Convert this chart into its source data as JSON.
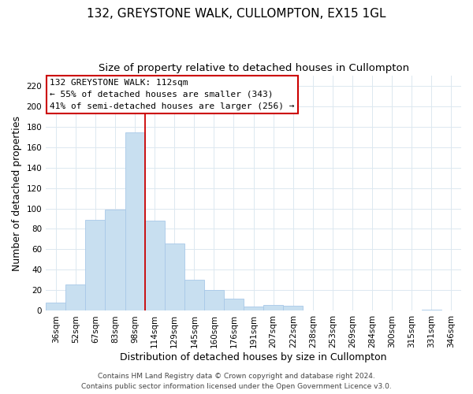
{
  "title": "132, GREYSTONE WALK, CULLOMPTON, EX15 1GL",
  "subtitle": "Size of property relative to detached houses in Cullompton",
  "xlabel": "Distribution of detached houses by size in Cullompton",
  "ylabel": "Number of detached properties",
  "bar_labels": [
    "36sqm",
    "52sqm",
    "67sqm",
    "83sqm",
    "98sqm",
    "114sqm",
    "129sqm",
    "145sqm",
    "160sqm",
    "176sqm",
    "191sqm",
    "207sqm",
    "222sqm",
    "238sqm",
    "253sqm",
    "269sqm",
    "284sqm",
    "300sqm",
    "315sqm",
    "331sqm",
    "346sqm"
  ],
  "bar_values": [
    8,
    26,
    89,
    99,
    174,
    88,
    66,
    30,
    20,
    12,
    4,
    6,
    5,
    0,
    0,
    0,
    0,
    0,
    0,
    1,
    0
  ],
  "bar_color": "#c8dff0",
  "bar_edge_color": "#a8c8e8",
  "vline_x_idx": 5,
  "vline_color": "#cc0000",
  "ylim": [
    0,
    230
  ],
  "yticks": [
    0,
    20,
    40,
    60,
    80,
    100,
    120,
    140,
    160,
    180,
    200,
    220
  ],
  "annotation_title": "132 GREYSTONE WALK: 112sqm",
  "annotation_line1": "← 55% of detached houses are smaller (343)",
  "annotation_line2": "41% of semi-detached houses are larger (256) →",
  "annotation_box_color": "#ffffff",
  "annotation_box_edge": "#cc0000",
  "footer1": "Contains HM Land Registry data © Crown copyright and database right 2024.",
  "footer2": "Contains public sector information licensed under the Open Government Licence v3.0.",
  "title_fontsize": 11,
  "subtitle_fontsize": 9.5,
  "axis_label_fontsize": 9,
  "tick_fontsize": 7.5,
  "annotation_title_fontsize": 8.5,
  "annotation_body_fontsize": 8,
  "footer_fontsize": 6.5,
  "grid_color": "#dce8f0",
  "background_color": "#ffffff"
}
